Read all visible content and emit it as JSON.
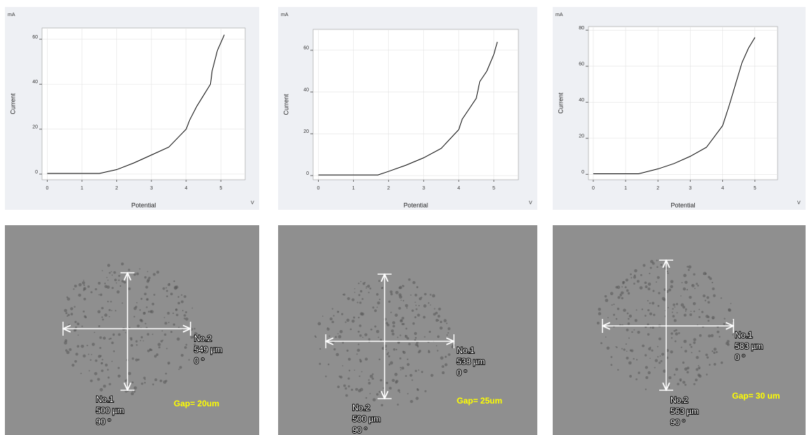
{
  "chart_data": [
    {
      "type": "line",
      "unit_label": "mA",
      "y_label": "Current",
      "x_label": "Potential",
      "x_unit": "V",
      "x": [
        0,
        1.5,
        2,
        2.5,
        3,
        3.5,
        4,
        4.1,
        4.3,
        4.5,
        4.7,
        4.75,
        4.9,
        5.1
      ],
      "series": [
        {
          "color": "#000000",
          "values": [
            0.3,
            0.3,
            2,
            5,
            8.5,
            12,
            20,
            24,
            30,
            35,
            40,
            46,
            55,
            62
          ]
        }
      ],
      "xlim": [
        -0.15,
        5.7
      ],
      "ylim": [
        -2.5,
        65
      ],
      "xticks": [
        0,
        1,
        2,
        3,
        4,
        5
      ],
      "yticks": [
        0,
        20,
        40,
        60
      ],
      "grid": true
    },
    {
      "type": "line",
      "unit_label": "mA",
      "y_label": "Current",
      "x_label": "Potential",
      "x_unit": "V",
      "x": [
        0,
        1.7,
        2,
        2.5,
        3,
        3.5,
        4,
        4.1,
        4.3,
        4.5,
        4.6,
        4.8,
        5,
        5.1
      ],
      "series": [
        {
          "color": "#000000",
          "values": [
            0.3,
            0.3,
            2,
            5,
            8.5,
            13,
            22,
            27,
            32,
            37,
            45,
            50,
            58,
            64
          ]
        }
      ],
      "xlim": [
        -0.15,
        5.7
      ],
      "ylim": [
        -2,
        70
      ],
      "xticks": [
        0,
        1,
        2,
        3,
        4,
        5
      ],
      "yticks": [
        0,
        20,
        40,
        60
      ],
      "grid": true
    },
    {
      "type": "line",
      "unit_label": "mA",
      "y_label": "Current",
      "x_label": "Potential",
      "x_unit": "V",
      "x": [
        0,
        1.4,
        2,
        2.5,
        3,
        3.5,
        4,
        4.2,
        4.4,
        4.6,
        4.8,
        5
      ],
      "series": [
        {
          "color": "#000000",
          "values": [
            0.3,
            0.3,
            3,
            6,
            10,
            15,
            27,
            38,
            50,
            62,
            70,
            76
          ]
        }
      ],
      "xlim": [
        -0.15,
        5.7
      ],
      "ylim": [
        -3,
        82
      ],
      "xticks": [
        0,
        1,
        2,
        3,
        4,
        5
      ],
      "yticks": [
        0,
        20,
        40,
        60,
        80
      ],
      "grid": true
    }
  ],
  "images": [
    {
      "labels": [
        {
          "lines": [
            "No.2",
            "549 µm",
            "0 °"
          ]
        },
        {
          "lines": [
            "No.1",
            "500 µm",
            "90 °"
          ]
        }
      ],
      "gap": "Gap= 20um"
    },
    {
      "labels": [
        {
          "lines": [
            "No.1",
            "538 µm",
            "0 °"
          ]
        },
        {
          "lines": [
            "No.2",
            "500 µm",
            "90 °"
          ]
        }
      ],
      "gap": "Gap= 25um"
    },
    {
      "labels": [
        {
          "lines": [
            "No.1",
            "583 µm",
            "0 °"
          ]
        },
        {
          "lines": [
            "No.2",
            "563 µm",
            "90 °"
          ]
        }
      ],
      "gap": "Gap= 30 um"
    }
  ]
}
